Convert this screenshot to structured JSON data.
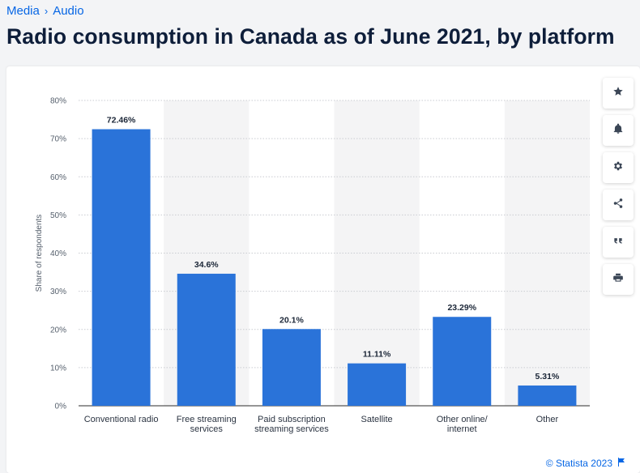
{
  "breadcrumb": {
    "items": [
      "Media",
      "Audio"
    ],
    "separator": "›"
  },
  "page_title": "Radio consumption in Canada as of June 2021, by platform",
  "tools": [
    {
      "name": "favorite-icon"
    },
    {
      "name": "bell-icon"
    },
    {
      "name": "gear-icon"
    },
    {
      "name": "share-icon"
    },
    {
      "name": "quote-icon"
    },
    {
      "name": "print-icon"
    }
  ],
  "footer": {
    "text": "© Statista 2023"
  },
  "colors": {
    "bar": "#2a73d9",
    "link": "#0666e5",
    "stripe": "#f4f4f5"
  },
  "chart_data": {
    "type": "bar",
    "categories": [
      [
        "Conventional radio"
      ],
      [
        "Free streaming",
        "services"
      ],
      [
        "Paid subscription",
        "streaming services"
      ],
      [
        "Satellite"
      ],
      [
        "Other online/",
        "internet"
      ],
      [
        "Other"
      ]
    ],
    "values": [
      72.46,
      34.6,
      20.1,
      11.11,
      23.29,
      5.31
    ],
    "value_labels": [
      "72.46%",
      "34.6%",
      "20.1%",
      "11.11%",
      "23.29%",
      "5.31%"
    ],
    "ylabel": "Share of respondents",
    "ylim": [
      0,
      80
    ],
    "yticks": [
      0,
      10,
      20,
      30,
      40,
      50,
      60,
      70,
      80
    ],
    "ytick_labels": [
      "0%",
      "10%",
      "20%",
      "30%",
      "40%",
      "50%",
      "60%",
      "70%",
      "80%"
    ],
    "grid": true
  }
}
